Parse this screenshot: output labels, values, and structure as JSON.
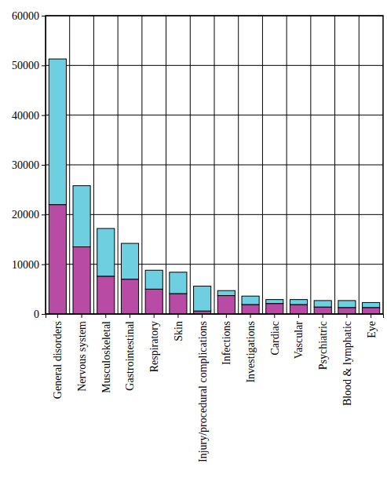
{
  "chart_data": {
    "type": "bar",
    "stacked": true,
    "grid": true,
    "categories": [
      "General disorders",
      "Nervous system",
      "Musculoskeletal",
      "Gastrointestinal",
      "Respiratory",
      "Skin",
      "Injury/procedural complications",
      "Infections",
      "Investigations",
      "Cardiac",
      "Vascular",
      "Psychiatric",
      "Blood & lymphatic",
      "Eye"
    ],
    "series": [
      {
        "color": "#b84ba3",
        "values": [
          22000,
          13500,
          7600,
          7000,
          5000,
          4100,
          600,
          3700,
          1900,
          2100,
          1900,
          1400,
          1300,
          1300
        ]
      },
      {
        "color": "#6dcfe0",
        "values": [
          29300,
          12300,
          9600,
          7200,
          3800,
          4300,
          5000,
          1000,
          1700,
          800,
          1000,
          1300,
          1400,
          1000
        ]
      }
    ],
    "ylim": [
      0,
      60000
    ],
    "yticks": [
      0,
      10000,
      20000,
      30000,
      40000,
      50000,
      60000
    ]
  }
}
